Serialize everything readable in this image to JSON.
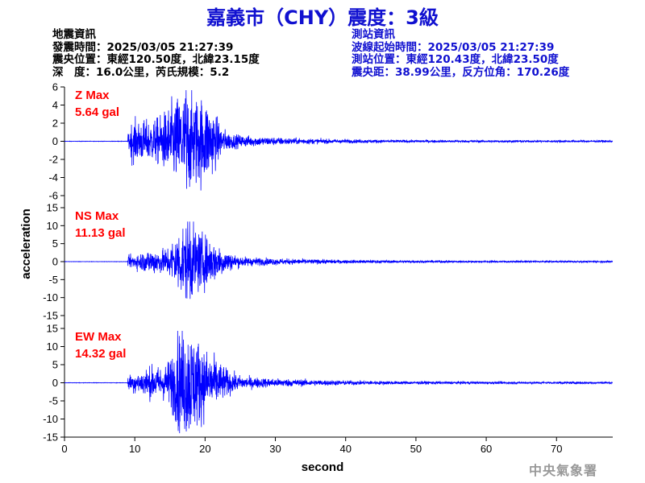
{
  "title": "嘉義市（CHY）震度：3級",
  "event_info": {
    "heading": "地震資訊",
    "origin_time": "發震時間：2025/03/05 21:27:39",
    "epicenter": "震央位置：東經120.50度，北緯23.15度",
    "depth_magnitude": "深　度：16.0公里，芮氏規模：5.2"
  },
  "station_info": {
    "heading": "測站資訊",
    "wave_start": "波線起始時間：2025/03/05 21:27:39",
    "station_location": "測站位置：東經120.43度，北緯23.50度",
    "distance": "震央距：38.99公里，反方位角：170.26度"
  },
  "credit": "中央氣象署",
  "colors": {
    "trace": "#0000ff",
    "max_label": "#ff0000",
    "title": "#1010d0",
    "station_info": "#1010d0"
  },
  "chart_data": {
    "type": "line",
    "xlabel": "second",
    "ylabel": "acceleration",
    "xlim": [
      0,
      78
    ],
    "x_ticks": [
      "0",
      "10",
      "20",
      "30",
      "40",
      "50",
      "60",
      "70"
    ],
    "panels": [
      {
        "name": "Z",
        "max_title": "Z Max",
        "max_value": "5.64 gal",
        "ylim": [
          -6,
          6
        ],
        "y_ticks": [
          "6",
          "4",
          "2",
          "0",
          "-2",
          "-4",
          "-6"
        ],
        "peak": 5.64,
        "onset": 9.0
      },
      {
        "name": "NS",
        "max_title": "NS Max",
        "max_value": "11.13 gal",
        "ylim": [
          -15,
          15
        ],
        "y_ticks": [
          "15",
          "10",
          "5",
          "0",
          "-5",
          "-10",
          "-15"
        ],
        "peak": 11.13,
        "onset": 9.0
      },
      {
        "name": "EW",
        "max_title": "EW Max",
        "max_value": "14.32 gal",
        "ylim": [
          -15,
          15
        ],
        "y_ticks": [
          "15",
          "10",
          "5",
          "0",
          "-5",
          "-10",
          "-15"
        ],
        "peak": 14.32,
        "onset": 9.0
      }
    ]
  }
}
